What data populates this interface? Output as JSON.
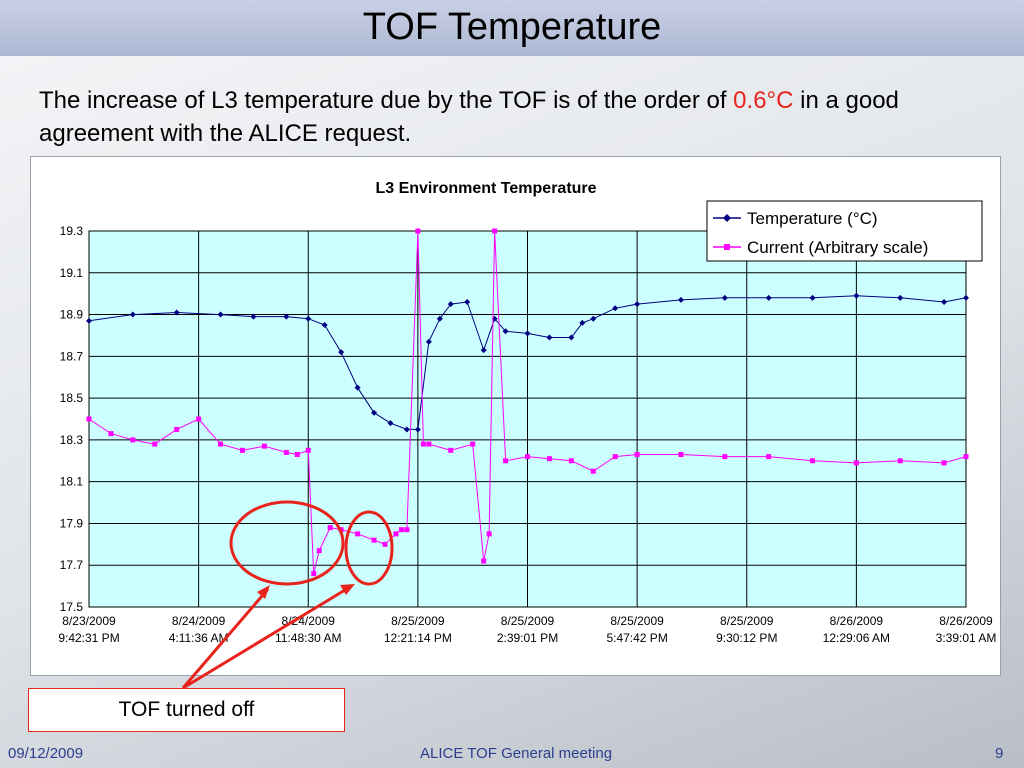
{
  "slide": {
    "title": "TOF Temperature",
    "body_pre": "The increase of L3 temperature due by the TOF is of the order of ",
    "body_highlight": "0.6°C",
    "body_post": " in a good agreement with the ALICE request.",
    "callout": "TOF turned off",
    "footer_date": "09/12/2009",
    "footer_meeting": "ALICE TOF General meeting",
    "footer_page": "9"
  },
  "colors": {
    "plot_bg": "#ccffff",
    "temperature": "#000080",
    "current": "#ff00ff",
    "annotation": "#e8231c"
  },
  "chart_data": {
    "type": "line",
    "title": "L3 Environment Temperature",
    "xlabel": "",
    "ylabel": "",
    "ylim": [
      17.5,
      19.3
    ],
    "yticks": [
      "19.3",
      "19.1",
      "18.9",
      "18.7",
      "18.5",
      "18.3",
      "18.1",
      "17.9",
      "17.7",
      "17.5"
    ],
    "xtick_labels": [
      [
        "8/23/2009",
        "9:42:31 PM"
      ],
      [
        "8/24/2009",
        "4:11:36 AM"
      ],
      [
        "8/24/2009",
        "11:48:30 AM"
      ],
      [
        "8/25/2009",
        "12:21:14 PM"
      ],
      [
        "8/25/2009",
        "2:39:01 PM"
      ],
      [
        "8/25/2009",
        "5:47:42 PM"
      ],
      [
        "8/25/2009",
        "9:30:12 PM"
      ],
      [
        "8/26/2009",
        "12:29:06 AM"
      ],
      [
        "8/26/2009",
        "3:39:01 AM"
      ]
    ],
    "grid": true,
    "legend_position": "top-right",
    "series": [
      {
        "name": "Temperature (°C)",
        "x": [
          0,
          0.4,
          0.8,
          1.2,
          1.5,
          1.8,
          2.0,
          2.15,
          2.3,
          2.45,
          2.6,
          2.75,
          2.9,
          3.0,
          3.1,
          3.2,
          3.3,
          3.45,
          3.6,
          3.7,
          3.8,
          4.0,
          4.2,
          4.4,
          4.5,
          4.6,
          4.8,
          5.0,
          5.4,
          5.8,
          6.2,
          6.6,
          7.0,
          7.4,
          7.8,
          8.0
        ],
        "y": [
          18.87,
          18.9,
          18.91,
          18.9,
          18.89,
          18.89,
          18.88,
          18.85,
          18.72,
          18.55,
          18.43,
          18.38,
          18.35,
          18.35,
          18.77,
          18.88,
          18.95,
          18.96,
          18.73,
          18.88,
          18.82,
          18.81,
          18.79,
          18.79,
          18.86,
          18.88,
          18.93,
          18.95,
          18.97,
          18.98,
          18.98,
          18.98,
          18.99,
          18.98,
          18.96,
          18.98
        ]
      },
      {
        "name": "Current (Arbitrary scale)",
        "x": [
          0,
          0.2,
          0.4,
          0.6,
          0.8,
          1.0,
          1.2,
          1.4,
          1.6,
          1.8,
          1.9,
          2.0,
          2.05,
          2.1,
          2.2,
          2.3,
          2.45,
          2.6,
          2.7,
          2.8,
          2.85,
          2.9,
          3.0,
          3.05,
          3.1,
          3.3,
          3.5,
          3.6,
          3.65,
          3.7,
          3.8,
          4.0,
          4.2,
          4.4,
          4.6,
          4.8,
          5.0,
          5.4,
          5.8,
          6.2,
          6.6,
          7.0,
          7.4,
          7.8,
          8.0
        ],
        "y": [
          18.4,
          18.33,
          18.3,
          18.28,
          18.35,
          18.4,
          18.28,
          18.25,
          18.27,
          18.24,
          18.23,
          18.25,
          17.66,
          17.77,
          17.88,
          17.87,
          17.85,
          17.82,
          17.8,
          17.85,
          17.87,
          17.87,
          19.3,
          18.28,
          18.28,
          18.25,
          18.28,
          17.72,
          17.85,
          19.3,
          18.2,
          18.22,
          18.21,
          18.2,
          18.15,
          18.22,
          18.23,
          18.23,
          18.22,
          18.22,
          18.2,
          18.19,
          18.2,
          18.19,
          18.22
        ]
      }
    ]
  }
}
